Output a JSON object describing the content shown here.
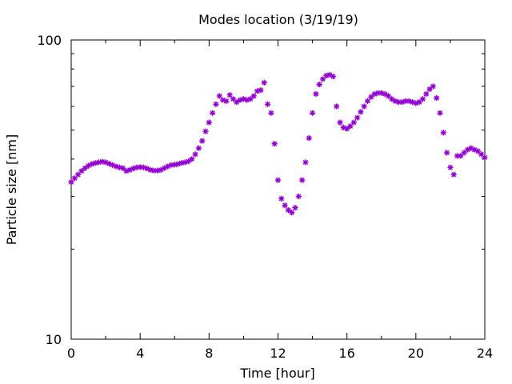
{
  "chart_data": {
    "type": "scatter",
    "title": "Modes location (3/19/19)",
    "xlabel": "Time [hour]",
    "ylabel": "Particle size [nm]",
    "xlim": [
      0,
      24
    ],
    "ylim": [
      10,
      100
    ],
    "yscale": "log",
    "xticks": [
      0,
      4,
      8,
      12,
      16,
      20,
      24
    ],
    "xtick_labels": [
      "0",
      "4",
      "8",
      "12",
      "16",
      "20",
      "24"
    ],
    "yticks": [
      10,
      100
    ],
    "ytick_labels": [
      "10",
      "100"
    ],
    "grid": false,
    "legend": "none",
    "marker": "asterisk",
    "colors": {
      "series": "#9400d3",
      "axes": "#000000"
    },
    "series": [
      {
        "x": [
          0,
          0.2,
          0.4,
          0.6,
          0.8,
          1.0,
          1.2,
          1.4,
          1.6,
          1.8,
          2.0,
          2.2,
          2.4,
          2.6,
          2.8,
          3.0,
          3.2,
          3.4,
          3.6,
          3.8,
          4.0,
          4.2,
          4.4,
          4.6,
          4.8,
          5.0,
          5.2,
          5.4,
          5.6,
          5.8,
          6.0,
          6.2,
          6.4,
          6.6,
          6.8,
          7.0,
          7.2,
          7.4,
          7.6,
          7.8,
          8.0,
          8.2,
          8.4,
          8.6,
          8.8,
          9.0,
          9.2,
          9.4,
          9.6,
          9.8,
          10.0,
          10.2,
          10.4,
          10.6,
          10.8,
          11.0,
          11.2,
          11.4,
          11.6,
          11.8,
          12.0,
          12.2,
          12.4,
          12.6,
          12.8,
          13.0,
          13.2,
          13.4,
          13.6,
          13.8,
          14.0,
          14.2,
          14.4,
          14.6,
          14.8,
          15.0,
          15.2,
          15.4,
          15.6,
          15.8,
          16.0,
          16.2,
          16.4,
          16.6,
          16.8,
          17.0,
          17.2,
          17.4,
          17.6,
          17.8,
          18.0,
          18.2,
          18.4,
          18.6,
          18.8,
          19.0,
          19.2,
          19.4,
          19.6,
          19.8,
          20.0,
          20.2,
          20.4,
          20.6,
          20.8,
          21.0,
          21.2,
          21.4,
          21.6,
          21.8,
          22.0,
          22.2,
          22.4,
          22.6,
          22.8,
          23.0,
          23.2,
          23.4,
          23.6,
          23.8,
          24.0
        ],
        "y": [
          33.5,
          34.5,
          35.5,
          36.5,
          37.3,
          38.0,
          38.5,
          38.8,
          39.0,
          39.2,
          39.0,
          38.6,
          38.2,
          37.8,
          37.5,
          37.3,
          36.5,
          36.8,
          37.2,
          37.5,
          37.6,
          37.5,
          37.2,
          36.8,
          36.6,
          36.6,
          36.8,
          37.3,
          37.8,
          38.2,
          38.3,
          38.5,
          38.8,
          39.0,
          39.3,
          40.0,
          41.5,
          43.5,
          46.0,
          49.5,
          53.0,
          57.0,
          61.0,
          65.0,
          63.0,
          62.5,
          65.5,
          63.5,
          62.0,
          63.0,
          63.5,
          63.0,
          63.5,
          65.0,
          67.5,
          68.0,
          72.0,
          61.0,
          57.0,
          45.0,
          34.0,
          29.5,
          28.0,
          27.0,
          26.5,
          27.5,
          30.0,
          34.0,
          39.0,
          47.0,
          57.0,
          66.0,
          71.0,
          74.0,
          76.0,
          76.5,
          75.5,
          60.0,
          53.0,
          51.0,
          50.5,
          51.5,
          53.0,
          55.0,
          57.5,
          60.0,
          62.5,
          64.5,
          66.0,
          66.5,
          66.5,
          66.0,
          65.0,
          63.5,
          62.5,
          62.0,
          62.0,
          62.5,
          62.5,
          62.0,
          61.5,
          62.0,
          63.5,
          66.0,
          68.5,
          70.0,
          64.0,
          57.0,
          49.0,
          42.0,
          37.5,
          35.5,
          41.0,
          41.0,
          42.0,
          43.0,
          43.5,
          43.0,
          42.5,
          41.5,
          40.5
        ]
      }
    ]
  }
}
